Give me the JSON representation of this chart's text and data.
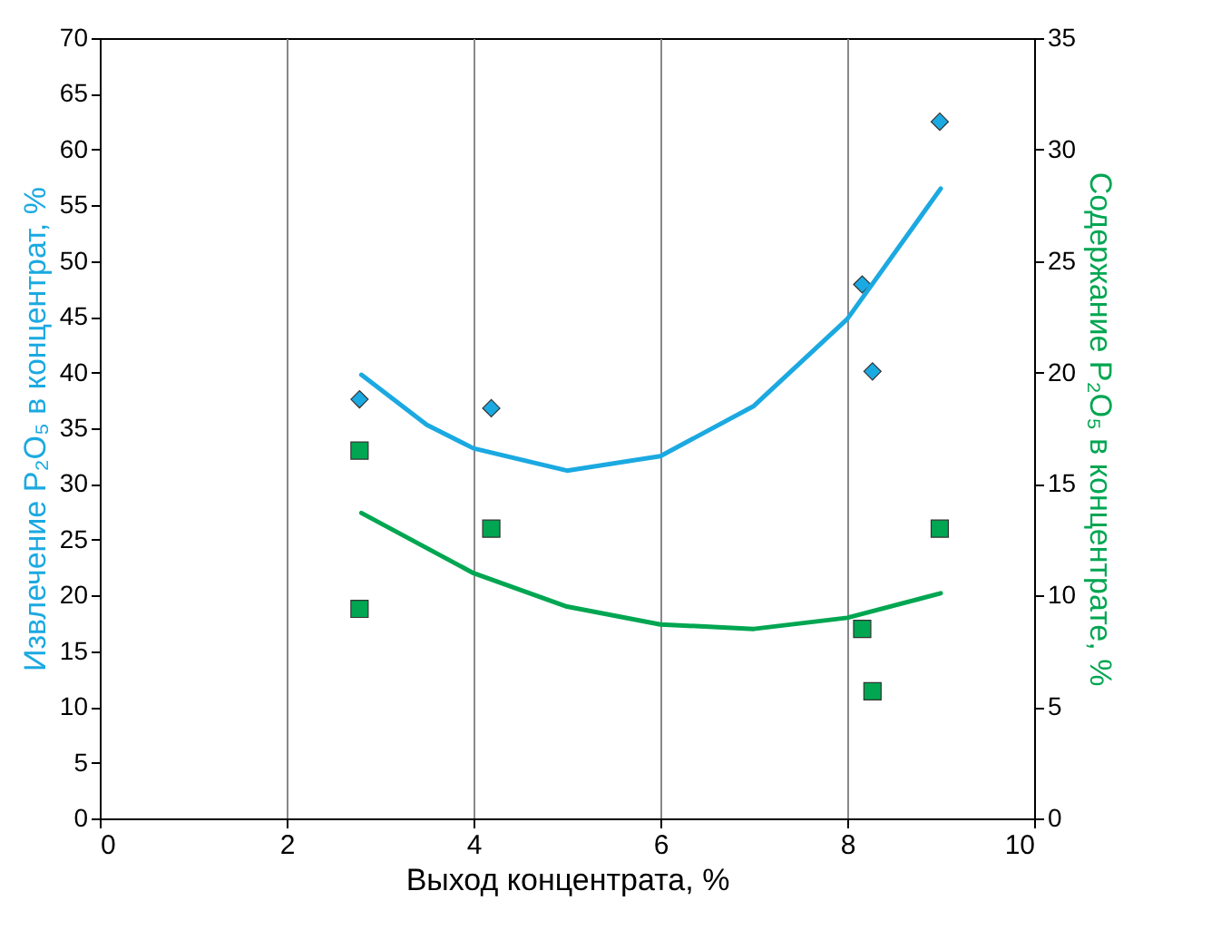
{
  "chart_data": {
    "type": "scatter",
    "xlabel": "Выход концентрата, %",
    "ylabel": "Извлечение P₂O₅ в концентрат, %",
    "y2label": "Содержание P₂O₅ в концентрате, %",
    "xlim": [
      0,
      10
    ],
    "xticks": [
      0,
      2,
      4,
      6,
      8,
      10
    ],
    "ylim": [
      0,
      70
    ],
    "yticks": [
      0,
      5,
      10,
      15,
      20,
      25,
      30,
      35,
      40,
      45,
      50,
      55,
      60,
      65,
      70
    ],
    "y2lim": [
      0,
      35
    ],
    "y2ticks": [
      0,
      5,
      10,
      15,
      20,
      25,
      30,
      35
    ],
    "grid": "x",
    "series": [
      {
        "marker": "diamond",
        "color": "#1ba9e1",
        "x": [
          2.78,
          4.19,
          8.16,
          8.27,
          8.99
        ],
        "values": [
          37.6,
          36.8,
          47.9,
          40.1,
          62.5
        ]
      },
      {
        "type": "line",
        "marker": "none",
        "color": "#1ba9e1",
        "x": [
          2.8,
          3.5,
          4,
          5,
          6,
          7,
          8,
          9
        ],
        "values": [
          39.8,
          35.3,
          33.2,
          31.2,
          32.5,
          37.0,
          44.8,
          56.5
        ]
      },
      {
        "marker": "square",
        "axis": "y2",
        "color": "#00a651",
        "x": [
          2.78,
          2.78,
          4.19,
          8.16,
          8.27,
          8.99
        ],
        "values": [
          16.5,
          9.4,
          13.0,
          8.5,
          5.7,
          13.0
        ]
      },
      {
        "type": "line",
        "marker": "none",
        "axis": "y2",
        "color": "#00a651",
        "x": [
          2.8,
          4,
          5,
          6,
          7,
          8,
          9
        ],
        "values": [
          13.7,
          11.0,
          9.5,
          8.7,
          8.5,
          9.0,
          10.1
        ]
      }
    ]
  }
}
